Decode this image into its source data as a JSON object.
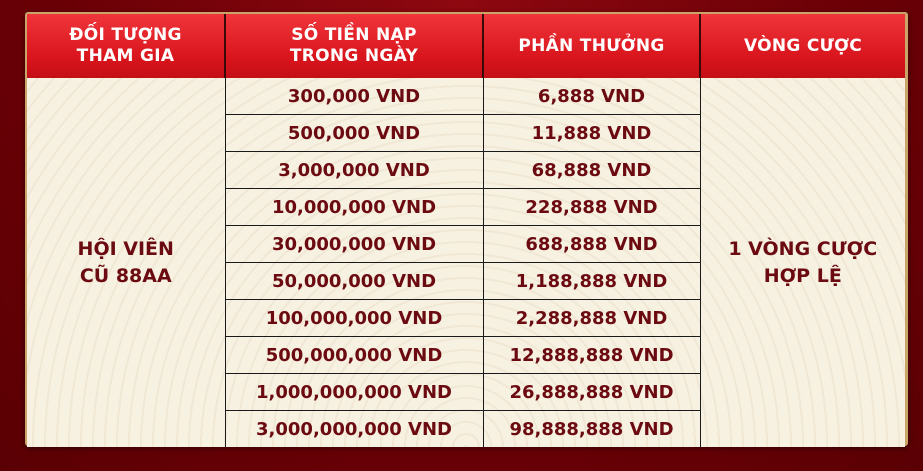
{
  "headers": [
    "ĐỐI TƯỢNG\nTHAM GIA",
    "SỐ TIỀN NẠP\nTRONG NGÀY",
    "PHẦN THƯỞNG",
    "VÒNG CƯỢC"
  ],
  "participant": "HỘI VIÊN\nCŨ 88AA",
  "wagering": "1 VÒNG CƯỢC\nHỢP LỆ",
  "rows": [
    {
      "deposit": "300,000 VND",
      "reward": "6,888 VND"
    },
    {
      "deposit": "500,000 VND",
      "reward": "11,888 VND"
    },
    {
      "deposit": "3,000,000 VND",
      "reward": "68,888 VND"
    },
    {
      "deposit": "10,000,000 VND",
      "reward": "228,888 VND"
    },
    {
      "deposit": "30,000,000 VND",
      "reward": "688,888 VND"
    },
    {
      "deposit": "50,000,000 VND",
      "reward": "1,188,888 VND"
    },
    {
      "deposit": "100,000,000 VND",
      "reward": "2,288,888 VND"
    },
    {
      "deposit": "500,000,000 VND",
      "reward": "12,888,888 VND"
    },
    {
      "deposit": "1,000,000,000 VND",
      "reward": "26,888,888 VND"
    },
    {
      "deposit": "3,000,000,000 VND",
      "reward": "98,888,888 VND"
    }
  ],
  "colors": {
    "background": "#6a0006",
    "header": "#d8141c",
    "body": "#f7f1e1",
    "text": "#6b0a10"
  }
}
